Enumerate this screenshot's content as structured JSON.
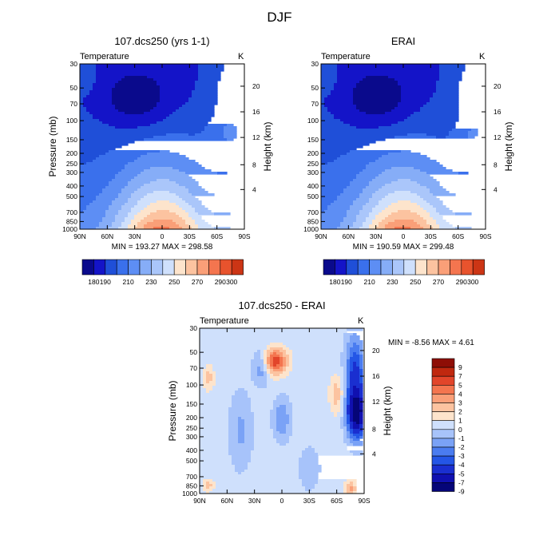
{
  "figure": {
    "title": "DJF"
  },
  "colors": {
    "cool": [
      "#0a0a8c",
      "#1414c8",
      "#1f4fd8",
      "#3a70ec",
      "#5d8ef4",
      "#86adf7",
      "#aac6fa",
      "#cfe0fc"
    ],
    "warm": [
      "#fde4cc",
      "#fcc3a0",
      "#fa9f78",
      "#f4754f",
      "#e8532d",
      "#cc3515",
      "#a51c0a",
      "#7a0a05"
    ],
    "diff_cool": [
      "#050578",
      "#1010b0",
      "#1a2fd0",
      "#2456e6",
      "#4a7cf0",
      "#7aa2f6",
      "#a7c3fa",
      "#cfe0fc"
    ],
    "diff_warm": [
      "#fde4cc",
      "#fcc3a0",
      "#fa9f78",
      "#f4754f",
      "#e2452a",
      "#c0280f",
      "#8e0e06"
    ]
  },
  "chart_data": [
    {
      "type": "heatmap",
      "title": "107.dcs250 (yrs 1-1)",
      "variable": "Temperature",
      "units": "K",
      "ylabel": "Pressure (mb)",
      "ylabel_right": "Height (km)",
      "x_ticks": [
        "90N",
        "60N",
        "30N",
        "0",
        "30S",
        "60S",
        "90S"
      ],
      "y_ticks": [
        "30",
        "50",
        "70",
        "100",
        "150",
        "200",
        "250",
        "300",
        "400",
        "500",
        "700",
        "850",
        "1000"
      ],
      "y_right_ticks": [
        "20",
        "16",
        "12",
        "8",
        "4"
      ],
      "stats": "MIN = 193.27   MAX = 298.58",
      "min": 193.27,
      "max": 298.58,
      "colorbar_levels": [
        "180",
        "190",
        "200",
        "210",
        "220",
        "230",
        "240",
        "250",
        "260",
        "270",
        "280",
        "290",
        "300"
      ],
      "colorbar_labels": [
        "180",
        "190",
        "210",
        "230",
        "250",
        "270",
        "290",
        "300"
      ]
    },
    {
      "type": "heatmap",
      "title": "ERAI",
      "variable": "Temperature",
      "units": "K",
      "ylabel_right": "Height (km)",
      "x_ticks": [
        "90N",
        "60N",
        "30N",
        "0",
        "30S",
        "60S",
        "90S"
      ],
      "y_ticks": [
        "30",
        "50",
        "70",
        "100",
        "150",
        "200",
        "250",
        "300",
        "400",
        "500",
        "700",
        "850",
        "1000"
      ],
      "y_right_ticks": [
        "20",
        "16",
        "12",
        "8",
        "4"
      ],
      "stats": "MIN = 190.59   MAX = 299.48",
      "min": 190.59,
      "max": 299.48,
      "colorbar_labels": [
        "180",
        "190",
        "210",
        "230",
        "250",
        "270",
        "290",
        "300"
      ]
    },
    {
      "type": "heatmap",
      "title": "107.dcs250 - ERAI",
      "variable": "Temperature",
      "units": "K",
      "ylabel": "Pressure (mb)",
      "ylabel_right": "Height (km)",
      "x_ticks": [
        "90N",
        "60N",
        "30N",
        "0",
        "30S",
        "60S",
        "90S"
      ],
      "y_ticks": [
        "30",
        "50",
        "70",
        "100",
        "150",
        "200",
        "250",
        "300",
        "400",
        "500",
        "700",
        "850",
        "1000"
      ],
      "y_right_ticks": [
        "20",
        "16",
        "12",
        "8",
        "4"
      ],
      "stats": "MIN =  -8.56   MAX =    4.61",
      "min": -8.56,
      "max": 4.61,
      "colorbar_labels": [
        "9",
        "7",
        "5",
        "4",
        "3",
        "2",
        "1",
        "0",
        "-1",
        "-2",
        "-3",
        "-4",
        "-5",
        "-7",
        "-9"
      ]
    }
  ]
}
